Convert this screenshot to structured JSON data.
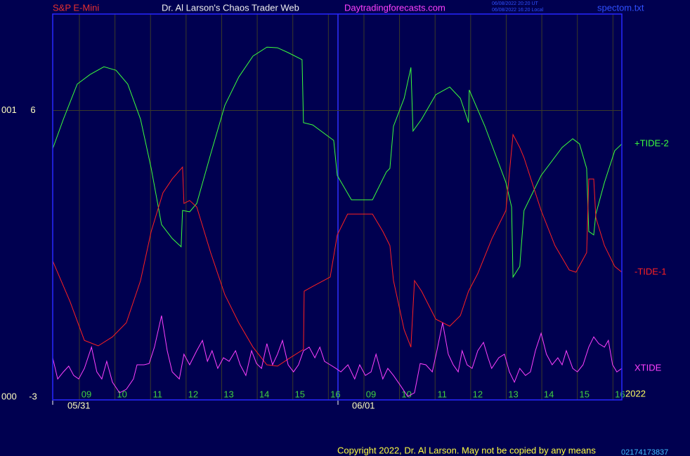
{
  "header": {
    "instrument": "S&P E-Mini",
    "site_title": "Dr. Al Larson's Chaos Trader Web",
    "url": "Daytradingforecasts.com",
    "timestamps": [
      "06/08/2022 20:20 UT",
      "06/08/2022 16:20 Local"
    ],
    "file": "spectom.txt"
  },
  "chart_data": {
    "type": "line",
    "xlim": [
      8.25,
      24.25
    ],
    "ylim": [
      -3,
      9
    ],
    "xticks": [
      {
        "value": 9,
        "label": "09"
      },
      10,
      11,
      12,
      13,
      14,
      15,
      16,
      {
        "value": 17,
        "label": "09"
      },
      {
        "value": 18,
        "label": "10"
      },
      {
        "value": 19,
        "label": "11"
      },
      {
        "value": 20,
        "label": "12"
      },
      {
        "value": 21,
        "label": "13"
      },
      {
        "value": 22,
        "label": "14"
      },
      {
        "value": 23,
        "label": "15"
      },
      {
        "value": 24,
        "label": "16"
      }
    ],
    "yticks": [
      -3,
      6
    ],
    "ytick_prefixes": [
      "000",
      "001"
    ],
    "day_labels": [
      "05/31",
      "06/01"
    ],
    "year_label": "2022",
    "grid": true,
    "series": [
      {
        "name": "+TIDE-2",
        "color": "#3cff3c",
        "x": [
          8.25,
          8.55,
          8.94,
          9.3,
          9.69,
          10.03,
          10.36,
          10.72,
          11.02,
          11.31,
          11.61,
          11.86,
          11.9,
          12.1,
          12.3,
          12.69,
          13.09,
          13.48,
          13.88,
          14.27,
          14.57,
          14.87,
          15.26,
          15.3,
          15.56,
          16.15,
          16.25,
          16.65,
          17.24,
          17.63,
          17.73,
          17.83,
          18.13,
          18.32,
          18.38,
          18.62,
          19.02,
          19.41,
          19.71,
          19.94,
          19.96,
          20.4,
          20.99,
          21.15,
          21.19,
          21.38,
          21.5,
          21.98,
          22.57,
          22.87,
          23.06,
          23.26,
          23.32,
          23.46,
          23.52,
          23.76,
          24.05,
          24.25
        ],
        "values": [
          4.81,
          5.73,
          6.82,
          7.12,
          7.36,
          7.25,
          6.82,
          5.73,
          4.2,
          2.45,
          2.02,
          1.76,
          2.89,
          2.85,
          3.11,
          4.64,
          6.16,
          7.04,
          7.69,
          7.97,
          7.95,
          7.8,
          7.58,
          5.62,
          5.55,
          5.07,
          3.98,
          3.22,
          3.22,
          4.09,
          4.2,
          5.51,
          6.38,
          7.34,
          5.36,
          5.73,
          6.49,
          6.73,
          6.38,
          5.62,
          6.64,
          5.51,
          3.76,
          3.0,
          0.82,
          1.15,
          2.89,
          3.98,
          4.85,
          5.12,
          4.96,
          4.2,
          2.24,
          2.13,
          2.78,
          3.76,
          4.75,
          4.96
        ]
      },
      {
        "name": "-TIDE-1",
        "color": "#ff2020",
        "x": [
          8.25,
          8.74,
          9.14,
          9.53,
          9.93,
          10.32,
          10.72,
          11.02,
          11.35,
          11.61,
          11.9,
          11.94,
          12.1,
          12.3,
          12.69,
          13.09,
          13.48,
          13.88,
          14.27,
          14.57,
          14.87,
          15.3,
          15.32,
          15.56,
          16.05,
          16.25,
          16.54,
          17.24,
          17.53,
          17.73,
          17.83,
          18.13,
          18.32,
          18.42,
          18.62,
          19.02,
          19.41,
          19.71,
          19.94,
          20.2,
          20.6,
          20.99,
          21.19,
          21.38,
          21.5,
          21.98,
          22.37,
          22.77,
          22.96,
          23.26,
          23.32,
          23.46,
          23.52,
          23.76,
          24.05,
          24.25
        ],
        "values": [
          1.32,
          0.05,
          -1.15,
          -1.32,
          -1.04,
          -0.6,
          0.71,
          2.24,
          3.44,
          3.87,
          4.24,
          3.11,
          3.2,
          3.0,
          1.58,
          0.27,
          -0.6,
          -1.36,
          -1.91,
          -1.95,
          -1.73,
          -1.43,
          0.38,
          0.53,
          0.82,
          2.13,
          2.78,
          2.78,
          2.24,
          1.8,
          0.71,
          -0.82,
          -1.36,
          0.71,
          0.38,
          -0.49,
          -0.71,
          -0.38,
          0.38,
          0.93,
          2.02,
          2.89,
          5.25,
          4.85,
          4.53,
          2.89,
          1.8,
          1.04,
          0.97,
          1.58,
          3.87,
          3.87,
          2.67,
          1.8,
          1.15,
          0.97
        ]
      },
      {
        "name": "XTIDE",
        "color": "#ff40ff",
        "x": [
          8.25,
          8.39,
          8.55,
          8.7,
          8.84,
          8.98,
          9.14,
          9.34,
          9.49,
          9.63,
          9.77,
          9.93,
          10.13,
          10.32,
          10.52,
          10.62,
          10.82,
          10.96,
          11.11,
          11.31,
          11.47,
          11.61,
          11.81,
          11.94,
          12.1,
          12.3,
          12.46,
          12.6,
          12.73,
          12.89,
          13.05,
          13.21,
          13.39,
          13.52,
          13.68,
          13.84,
          13.98,
          14.12,
          14.27,
          14.43,
          14.57,
          14.71,
          14.87,
          15.02,
          15.16,
          15.3,
          15.46,
          15.62,
          15.76,
          15.89,
          16.05,
          16.21,
          16.35,
          16.55,
          16.74,
          16.88,
          17.04,
          17.2,
          17.34,
          17.53,
          17.67,
          17.83,
          18.03,
          18.23,
          18.42,
          18.58,
          18.74,
          18.92,
          19.05,
          19.21,
          19.37,
          19.51,
          19.65,
          19.76,
          19.9,
          20.04,
          20.2,
          20.36,
          20.49,
          20.59,
          20.79,
          20.95,
          21.09,
          21.23,
          21.38,
          21.54,
          21.68,
          21.82,
          21.98,
          22.13,
          22.29,
          22.45,
          22.57,
          22.69,
          22.87,
          23.0,
          23.16,
          23.32,
          23.46,
          23.6,
          23.76,
          23.87,
          23.99,
          24.11,
          24.25
        ],
        "values": [
          -1.69,
          -2.35,
          -2.13,
          -1.95,
          -2.24,
          -2.35,
          -2.02,
          -1.36,
          -2.13,
          -2.35,
          -1.8,
          -2.45,
          -2.78,
          -2.67,
          -2.35,
          -1.91,
          -1.91,
          -1.87,
          -1.36,
          -0.38,
          -1.47,
          -2.13,
          -2.35,
          -1.58,
          -1.91,
          -1.47,
          -1.15,
          -1.8,
          -1.47,
          -2.02,
          -1.69,
          -1.8,
          -1.47,
          -1.91,
          -2.24,
          -1.47,
          -1.87,
          -2.02,
          -1.25,
          -1.91,
          -1.58,
          -1.15,
          -1.91,
          -2.13,
          -1.91,
          -1.47,
          -1.36,
          -1.69,
          -1.36,
          -1.8,
          -1.91,
          -2.02,
          -2.13,
          -1.91,
          -2.35,
          -1.91,
          -2.24,
          -2.13,
          -1.58,
          -2.35,
          -2.02,
          -2.24,
          -2.56,
          -2.89,
          -2.78,
          -1.87,
          -1.91,
          -2.13,
          -1.47,
          -0.6,
          -1.58,
          -1.91,
          -2.13,
          -1.47,
          -1.91,
          -2.02,
          -1.47,
          -1.21,
          -1.69,
          -2.02,
          -1.69,
          -1.58,
          -2.13,
          -2.45,
          -2.02,
          -2.24,
          -2.13,
          -1.47,
          -0.93,
          -1.58,
          -1.91,
          -1.69,
          -1.91,
          -1.47,
          -2.02,
          -2.13,
          -1.91,
          -1.36,
          -1.04,
          -1.25,
          -1.36,
          -1.15,
          -1.91,
          -2.13,
          -2.02
        ]
      }
    ]
  },
  "footer": {
    "copyright": "Copyright 2022, Dr. Al Larson. May not be copied by any means",
    "code": "02174173837"
  }
}
